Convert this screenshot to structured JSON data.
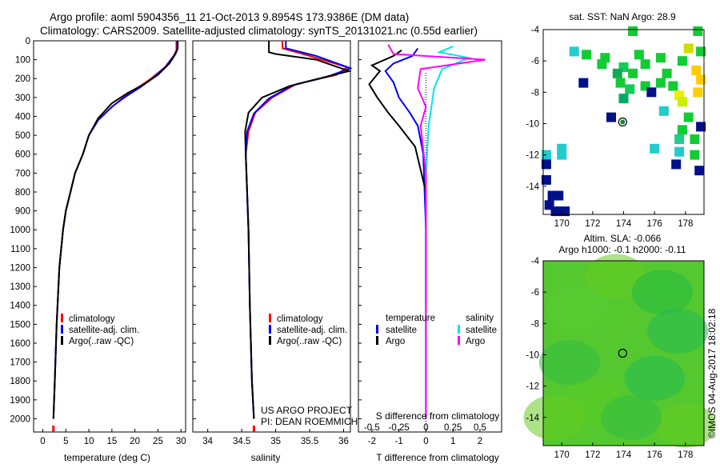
{
  "header": {
    "title_line1": "Argo profile: aoml 5904356_11 21-Oct-2013 9.8954S 173.9386E (DM data)",
    "title_line2": "Climatology: CARS2009. Satellite-adjusted climatology: synTS_20131021.nc (0.55d earlier)"
  },
  "credit": {
    "project": "US ARGO PROJECT",
    "pi": "PI: DEAN ROEMMICH",
    "side_stamp": "©IMOS 04-Aug-2017 18:02:18"
  },
  "colors": {
    "climatology": "#ff0000",
    "satellite": "#0000ff",
    "argo": "#000000",
    "sal_satellite": "#00e5e5",
    "sal_argo": "#ff00ff"
  },
  "chart_data": [
    {
      "id": "temperature",
      "type": "line",
      "xlabel": "temperature (deg C)",
      "ylabel": "",
      "xlim": [
        -2,
        31
      ],
      "ylim": [
        2070,
        0
      ],
      "xticks": [
        0,
        5,
        10,
        15,
        20,
        25,
        30
      ],
      "yticks": [
        0,
        100,
        200,
        300,
        400,
        500,
        600,
        700,
        800,
        900,
        1000,
        1100,
        1200,
        1300,
        1400,
        1500,
        1600,
        1700,
        1800,
        1900,
        2000
      ],
      "legend": [
        "climatology",
        "satellite-adj. clim.",
        "Argo(..raw -QC)"
      ],
      "series": [
        {
          "name": "climatology",
          "color": "#ff0000",
          "x": [
            29.0,
            29.0,
            28.4,
            26.5,
            23.5,
            20.5,
            17.5,
            15.0,
            12.0,
            10.0,
            8.7,
            7.0,
            6.0,
            5.0,
            4.4,
            3.6,
            3.0,
            2.6,
            2.3
          ],
          "y": [
            0,
            50,
            80,
            140,
            200,
            250,
            300,
            350,
            420,
            500,
            600,
            700,
            800,
            900,
            1000,
            1200,
            1500,
            1800,
            2000
          ]
        },
        {
          "name": "satellite-adj. clim.",
          "color": "#0000ff",
          "x": [
            29.2,
            29.2,
            28.6,
            26.8,
            24.0,
            21.2,
            18.0,
            15.2,
            12.0,
            10.0,
            8.7,
            7.0,
            6.0,
            5.0,
            4.4,
            3.6,
            3.0,
            2.6,
            2.3
          ],
          "y": [
            0,
            45,
            75,
            135,
            195,
            245,
            295,
            345,
            420,
            500,
            600,
            700,
            800,
            900,
            1000,
            1200,
            1500,
            1800,
            2000
          ]
        },
        {
          "name": "Argo(..raw -QC)",
          "color": "#000000",
          "x": [
            29.3,
            29.3,
            28.8,
            27.5,
            25.0,
            22.0,
            18.5,
            15.0,
            12.0,
            10.0,
            8.7,
            7.0,
            6.0,
            5.0,
            4.4,
            3.6,
            3.0,
            2.6,
            2.3
          ],
          "y": [
            0,
            40,
            70,
            120,
            180,
            230,
            275,
            330,
            410,
            500,
            600,
            700,
            800,
            900,
            1000,
            1200,
            1500,
            1800,
            2000
          ]
        }
      ]
    },
    {
      "id": "salinity",
      "type": "line",
      "xlabel": "salinity",
      "ylabel": "",
      "xlim": [
        33.78,
        36.1
      ],
      "ylim": [
        2070,
        0
      ],
      "xticks": [
        34,
        34.5,
        35,
        35.5,
        36
      ],
      "legend": [
        "climatology",
        "satellite-adj. clim.",
        "Argo(..raw -QC)"
      ],
      "series": [
        {
          "name": "climatology",
          "color": "#ff0000",
          "x": [
            35.1,
            35.1,
            35.5,
            36.05,
            35.9,
            35.3,
            34.95,
            34.7,
            34.6,
            34.56,
            34.58,
            34.6,
            34.62,
            34.65,
            34.68
          ],
          "y": [
            0,
            40,
            80,
            140,
            180,
            230,
            300,
            380,
            480,
            600,
            800,
            1000,
            1400,
            1800,
            2000
          ]
        },
        {
          "name": "satellite-adj. clim.",
          "color": "#0000ff",
          "x": [
            35.15,
            35.15,
            35.6,
            36.1,
            35.8,
            35.25,
            34.9,
            34.68,
            34.58,
            34.56,
            34.58,
            34.6,
            34.62,
            34.65,
            34.68
          ],
          "y": [
            0,
            40,
            80,
            145,
            185,
            235,
            305,
            385,
            480,
            600,
            800,
            1000,
            1400,
            1800,
            2000
          ]
        },
        {
          "name": "Argo(..raw -QC)",
          "color": "#000000",
          "x": [
            34.9,
            34.9,
            35.0,
            35.6,
            36.08,
            35.2,
            34.8,
            34.6,
            34.55,
            34.56,
            34.58,
            34.6,
            34.62,
            34.65,
            34.68
          ],
          "y": [
            0,
            60,
            70,
            100,
            160,
            240,
            300,
            380,
            480,
            600,
            800,
            1000,
            1400,
            1800,
            2000
          ]
        }
      ]
    },
    {
      "id": "differences",
      "type": "line",
      "xlabel": "T difference from climatology",
      "xlabel_top": "S difference from climatology",
      "xlim": [
        -2.5,
        2.8
      ],
      "ylim": [
        2070,
        0
      ],
      "xticks_T": [
        -2,
        -1,
        0,
        1,
        2
      ],
      "xticks_S_labels": [
        "-0.5",
        "-0.25",
        "0",
        "0.25",
        "0.5"
      ],
      "xticks_S_values": [
        -2,
        -1,
        0,
        1,
        2
      ],
      "legend_temperature": {
        "heading": "temperature",
        "items": [
          "satellite",
          "Argo"
        ]
      },
      "legend_salinity": {
        "heading": "salinity",
        "items": [
          "satellite",
          "Argo"
        ]
      },
      "series": [
        {
          "name": "temperature satellite",
          "color": "#0000ff",
          "x": [
            -0.3,
            -0.5,
            -1.2,
            -1.5,
            -1.2,
            -1.0,
            -0.6,
            -0.3,
            -0.1,
            0.0,
            0.0
          ],
          "y": [
            40,
            80,
            120,
            160,
            220,
            300,
            380,
            450,
            600,
            1000,
            2000
          ]
        },
        {
          "name": "temperature Argo",
          "color": "#000000",
          "x": [
            -0.9,
            -1.2,
            -2.0,
            -1.7,
            -2.1,
            -1.8,
            -1.4,
            -1.0,
            -0.4,
            0.0,
            0.0
          ],
          "y": [
            50,
            80,
            130,
            160,
            230,
            300,
            380,
            450,
            560,
            800,
            1400
          ]
        },
        {
          "name": "salinity satellite",
          "color": "#00e5e5",
          "x": [
            1.0,
            0.5,
            1.6,
            0.6,
            0.3,
            0.2,
            0.1,
            0.0,
            0.0
          ],
          "y": [
            30,
            60,
            90,
            150,
            250,
            350,
            450,
            700,
            2000
          ]
        },
        {
          "name": "salinity Argo",
          "color": "#ff00ff",
          "x": [
            -1.4,
            -1.2,
            2.2,
            -0.2,
            -0.3,
            0.0,
            -0.2,
            0.0,
            0.0
          ],
          "y": [
            20,
            70,
            100,
            150,
            250,
            350,
            450,
            700,
            2000
          ]
        }
      ]
    },
    {
      "id": "sst-map",
      "type": "heatmap",
      "title": "sat. SST: NaN Argo: 28.9",
      "xlim": [
        168.8,
        179.2
      ],
      "ylim": [
        -15.8,
        -4
      ],
      "xticks": [
        170,
        172,
        174,
        176,
        178
      ],
      "yticks": [
        -4,
        -6,
        -8,
        -10,
        -12,
        -14
      ],
      "marker": {
        "lon": 173.94,
        "lat": -9.9
      },
      "cells": [
        {
          "lon": 174.6,
          "lat": -4.1,
          "c": "#11cc33"
        },
        {
          "lon": 178.8,
          "lat": -4.1,
          "c": "#11cc33"
        },
        {
          "lon": 170.8,
          "lat": -5.4,
          "c": "#22cccc"
        },
        {
          "lon": 171.6,
          "lat": -5.6,
          "c": "#11cc33"
        },
        {
          "lon": 172.8,
          "lat": -5.8,
          "c": "#11cc33"
        },
        {
          "lon": 175.0,
          "lat": -5.6,
          "c": "#11cc33"
        },
        {
          "lon": 176.4,
          "lat": -5.8,
          "c": "#11cc33"
        },
        {
          "lon": 178.2,
          "lat": -5.2,
          "c": "#ccdd00"
        },
        {
          "lon": 179.0,
          "lat": -5.4,
          "c": "#11cc33"
        },
        {
          "lon": 177.8,
          "lat": -6.0,
          "c": "#11cc33"
        },
        {
          "lon": 174.0,
          "lat": -6.4,
          "c": "#11cc55"
        },
        {
          "lon": 174.6,
          "lat": -6.8,
          "c": "#11cc33"
        },
        {
          "lon": 175.4,
          "lat": -6.2,
          "c": "#11cc33"
        },
        {
          "lon": 172.6,
          "lat": -6.2,
          "c": "#11cc33"
        },
        {
          "lon": 173.6,
          "lat": -6.8,
          "c": "#11aa55"
        },
        {
          "lon": 178.7,
          "lat": -6.6,
          "c": "#ffcc00"
        },
        {
          "lon": 179.0,
          "lat": -7.2,
          "c": "#ffcc00"
        },
        {
          "lon": 177.2,
          "lat": -7.6,
          "c": "#11cc33"
        },
        {
          "lon": 176.4,
          "lat": -7.4,
          "c": "#11cc33"
        },
        {
          "lon": 175.4,
          "lat": -7.6,
          "c": "#11cc33"
        },
        {
          "lon": 173.8,
          "lat": -7.4,
          "c": "#11cc33"
        },
        {
          "lon": 176.8,
          "lat": -6.8,
          "c": "#11cc33"
        },
        {
          "lon": 171.4,
          "lat": -7.4,
          "c": "#001188"
        },
        {
          "lon": 174.4,
          "lat": -7.8,
          "c": "#11cc55"
        },
        {
          "lon": 175.8,
          "lat": -8.0,
          "c": "#001188"
        },
        {
          "lon": 177.6,
          "lat": -8.2,
          "c": "#eeee00"
        },
        {
          "lon": 177.8,
          "lat": -8.6,
          "c": "#ccee00"
        },
        {
          "lon": 178.8,
          "lat": -8.0,
          "c": "#ffcc00"
        },
        {
          "lon": 174.0,
          "lat": -8.4,
          "c": "#00aa66"
        },
        {
          "lon": 176.6,
          "lat": -9.2,
          "c": "#22cccc"
        },
        {
          "lon": 173.2,
          "lat": -9.6,
          "c": "#001188"
        },
        {
          "lon": 178.2,
          "lat": -9.6,
          "c": "#11cc33"
        },
        {
          "lon": 179.0,
          "lat": -10.2,
          "c": "#001188"
        },
        {
          "lon": 177.8,
          "lat": -10.4,
          "c": "#11cc33"
        },
        {
          "lon": 177.6,
          "lat": -11.0,
          "c": "#22cc88"
        },
        {
          "lon": 178.6,
          "lat": -11.0,
          "c": "#11cc33"
        },
        {
          "lon": 176.0,
          "lat": -11.6,
          "c": "#22cccc"
        },
        {
          "lon": 177.6,
          "lat": -11.8,
          "c": "#22cccc"
        },
        {
          "lon": 178.6,
          "lat": -12.0,
          "c": "#11cc33"
        },
        {
          "lon": 170.0,
          "lat": -11.6,
          "c": "#22cccc"
        },
        {
          "lon": 169.0,
          "lat": -12.0,
          "c": "#22cccc"
        },
        {
          "lon": 170.0,
          "lat": -12.0,
          "c": "#22cccc"
        },
        {
          "lon": 169.0,
          "lat": -12.6,
          "c": "#001188"
        },
        {
          "lon": 177.4,
          "lat": -12.6,
          "c": "#001188"
        },
        {
          "lon": 178.9,
          "lat": -13.0,
          "c": "#001188"
        },
        {
          "lon": 169.0,
          "lat": -13.6,
          "c": "#001188"
        },
        {
          "lon": 169.4,
          "lat": -14.6,
          "c": "#001188"
        },
        {
          "lon": 169.8,
          "lat": -14.6,
          "c": "#001188"
        },
        {
          "lon": 169.2,
          "lat": -15.2,
          "c": "#001188"
        },
        {
          "lon": 170.2,
          "lat": -15.6,
          "c": "#001188"
        },
        {
          "lon": 169.6,
          "lat": -15.6,
          "c": "#001188"
        }
      ]
    },
    {
      "id": "sla-map",
      "type": "heatmap",
      "title_line1": "Altim. SLA: -0.066",
      "title_line2": "Argo h1000: -0.1 h2000: -0.11",
      "xlim": [
        168.8,
        179.2
      ],
      "ylim": [
        -15.8,
        -4
      ],
      "xticks": [
        170,
        172,
        174,
        176,
        178
      ],
      "yticks": [
        -4,
        -6,
        -8,
        -10,
        -12,
        -14
      ],
      "marker": {
        "lon": 173.94,
        "lat": -9.9
      },
      "patches": [
        {
          "lon": 173.5,
          "lat": -5.0,
          "c": "#66cc22"
        },
        {
          "lon": 171.0,
          "lat": -7.0,
          "c": "#55cc33"
        },
        {
          "lon": 176.5,
          "lat": -6.0,
          "c": "#22bb44"
        },
        {
          "lon": 177.5,
          "lat": -8.5,
          "c": "#22bb55"
        },
        {
          "lon": 170.5,
          "lat": -10.5,
          "c": "#33bb44"
        },
        {
          "lon": 176.0,
          "lat": -11.5,
          "c": "#22bb55"
        },
        {
          "lon": 172.0,
          "lat": -13.0,
          "c": "#55cc22"
        },
        {
          "lon": 178.0,
          "lat": -14.5,
          "c": "#66cc22"
        },
        {
          "lon": 174.5,
          "lat": -14.0,
          "c": "#33bb44"
        },
        {
          "lon": 169.5,
          "lat": -14.0,
          "c": "#66cc22"
        }
      ]
    }
  ]
}
